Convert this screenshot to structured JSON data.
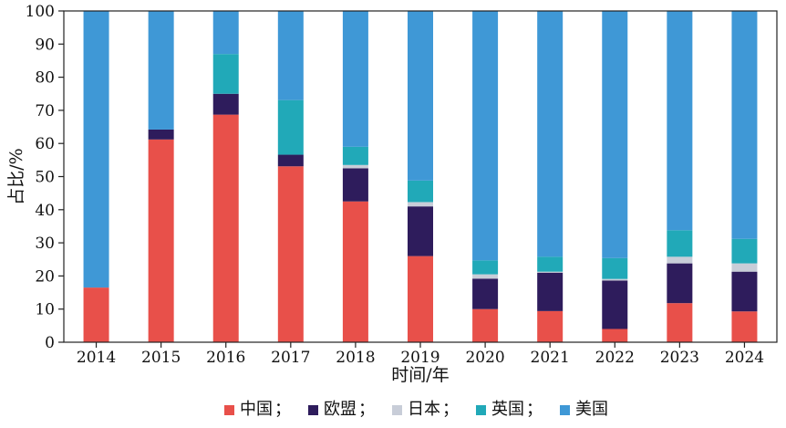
{
  "chart_data": {
    "type": "bar",
    "stacked": true,
    "categories": [
      "2014",
      "2015",
      "2016",
      "2017",
      "2018",
      "2019",
      "2020",
      "2021",
      "2022",
      "2023",
      "2024"
    ],
    "series": [
      {
        "name": "中国",
        "color": "#e8504a",
        "values": [
          16.5,
          61.2,
          68.7,
          53.1,
          42.5,
          26.0,
          10.0,
          9.4,
          4.0,
          11.8,
          9.3
        ]
      },
      {
        "name": "欧盟",
        "color": "#2e1c5c",
        "values": [
          0.0,
          3.0,
          6.3,
          3.5,
          10.0,
          15.0,
          9.2,
          11.6,
          14.6,
          12.0,
          12.0
        ]
      },
      {
        "name": "日本",
        "color": "#c8cdd8",
        "values": [
          0.0,
          0.0,
          0.0,
          0.0,
          1.0,
          1.3,
          1.3,
          0.3,
          0.5,
          2.0,
          2.5
        ]
      },
      {
        "name": "英国",
        "color": "#21a9b8",
        "values": [
          0.0,
          0.0,
          12.0,
          16.5,
          5.5,
          6.5,
          4.2,
          4.5,
          6.3,
          8.0,
          7.4
        ]
      },
      {
        "name": "美国",
        "color": "#3f98d6",
        "values": [
          83.5,
          35.8,
          13.0,
          26.9,
          41.0,
          51.2,
          75.3,
          74.2,
          74.6,
          66.2,
          68.8
        ]
      }
    ],
    "xlabel": "时间/年",
    "ylabel": "占比/%",
    "ylim": [
      0,
      100
    ],
    "yticks": [
      "0",
      "10",
      "20",
      "30",
      "40",
      "50",
      "60",
      "70",
      "80",
      "90",
      "100"
    ],
    "grid": false,
    "legend_position": "bottom",
    "legend_separator": "；"
  }
}
